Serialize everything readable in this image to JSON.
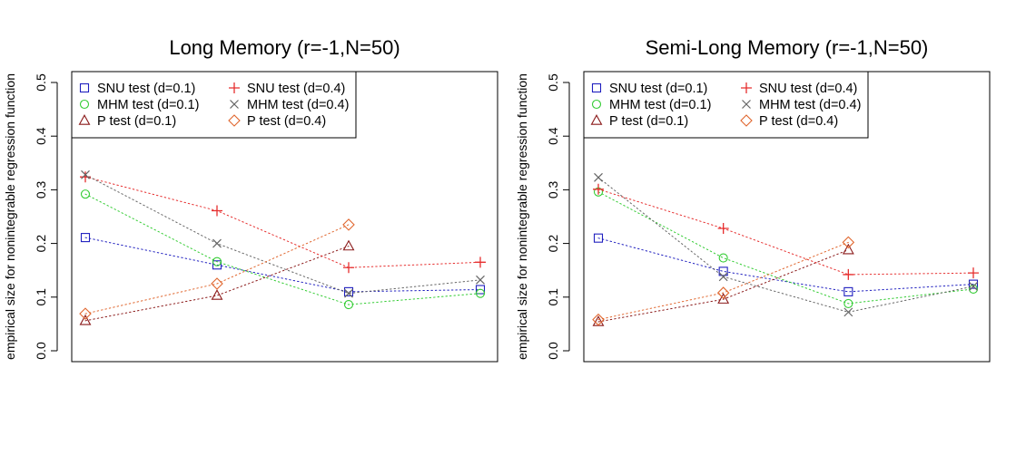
{
  "chart_data": [
    {
      "type": "line",
      "title": "Long Memory (r=-1,N=50)",
      "xlabel": "",
      "ylabel": "empirical size for nonintegrable regression function",
      "ylim": [
        0,
        0.5
      ],
      "yticks": [
        "0.0",
        "0.1",
        "0.2",
        "0.3",
        "0.4",
        "0.5"
      ],
      "legend_position": "top-left",
      "series": [
        {
          "name": "SNU test (d=0.1)",
          "color": "#1f1fbf",
          "marker": "square",
          "x": [
            1,
            2,
            3,
            4
          ],
          "values": [
            0.211,
            0.16,
            0.11,
            0.114
          ]
        },
        {
          "name": "MHM test (d=0.1)",
          "color": "#33cc33",
          "marker": "circle",
          "x": [
            1,
            2,
            3,
            4
          ],
          "values": [
            0.292,
            0.166,
            0.086,
            0.107
          ]
        },
        {
          "name": "P test (d=0.1)",
          "color": "#8b1a1a",
          "marker": "triangle",
          "x": [
            1,
            2,
            3
          ],
          "values": [
            0.056,
            0.103,
            0.195
          ]
        },
        {
          "name": "SNU test (d=0.4)",
          "color": "#e62e2e",
          "marker": "plus",
          "x": [
            1,
            2,
            3,
            4
          ],
          "values": [
            0.324,
            0.261,
            0.155,
            0.165
          ]
        },
        {
          "name": "MHM test (d=0.4)",
          "color": "#666666",
          "marker": "cross",
          "x": [
            1,
            2,
            3,
            4
          ],
          "values": [
            0.328,
            0.2,
            0.107,
            0.132
          ]
        },
        {
          "name": "P test (d=0.4)",
          "color": "#e0662e",
          "marker": "diamond",
          "x": [
            1,
            2,
            3
          ],
          "values": [
            0.069,
            0.125,
            0.235
          ]
        }
      ]
    },
    {
      "type": "line",
      "title": "Semi-Long Memory (r=-1,N=50)",
      "xlabel": "",
      "ylabel": "empirical size for nonintegrable regression function",
      "ylim": [
        0,
        0.5
      ],
      "yticks": [
        "0.0",
        "0.1",
        "0.2",
        "0.3",
        "0.4",
        "0.5"
      ],
      "legend_position": "top-left",
      "series": [
        {
          "name": "SNU test (d=0.1)",
          "color": "#1f1fbf",
          "marker": "square",
          "x": [
            1,
            2,
            3,
            4
          ],
          "values": [
            0.21,
            0.148,
            0.11,
            0.124
          ]
        },
        {
          "name": "MHM test (d=0.1)",
          "color": "#33cc33",
          "marker": "circle",
          "x": [
            1,
            2,
            3,
            4
          ],
          "values": [
            0.296,
            0.173,
            0.088,
            0.115
          ]
        },
        {
          "name": "P test (d=0.1)",
          "color": "#8b1a1a",
          "marker": "triangle",
          "x": [
            1,
            2,
            3
          ],
          "values": [
            0.054,
            0.096,
            0.188
          ]
        },
        {
          "name": "SNU test (d=0.4)",
          "color": "#e62e2e",
          "marker": "plus",
          "x": [
            1,
            2,
            3,
            4
          ],
          "values": [
            0.301,
            0.228,
            0.142,
            0.145
          ]
        },
        {
          "name": "MHM test (d=0.4)",
          "color": "#666666",
          "marker": "cross",
          "x": [
            1,
            2,
            3,
            4
          ],
          "values": [
            0.323,
            0.138,
            0.072,
            0.12
          ]
        },
        {
          "name": "P test (d=0.4)",
          "color": "#e0662e",
          "marker": "diamond",
          "x": [
            1,
            2,
            3
          ],
          "values": [
            0.058,
            0.108,
            0.202
          ]
        }
      ]
    }
  ]
}
